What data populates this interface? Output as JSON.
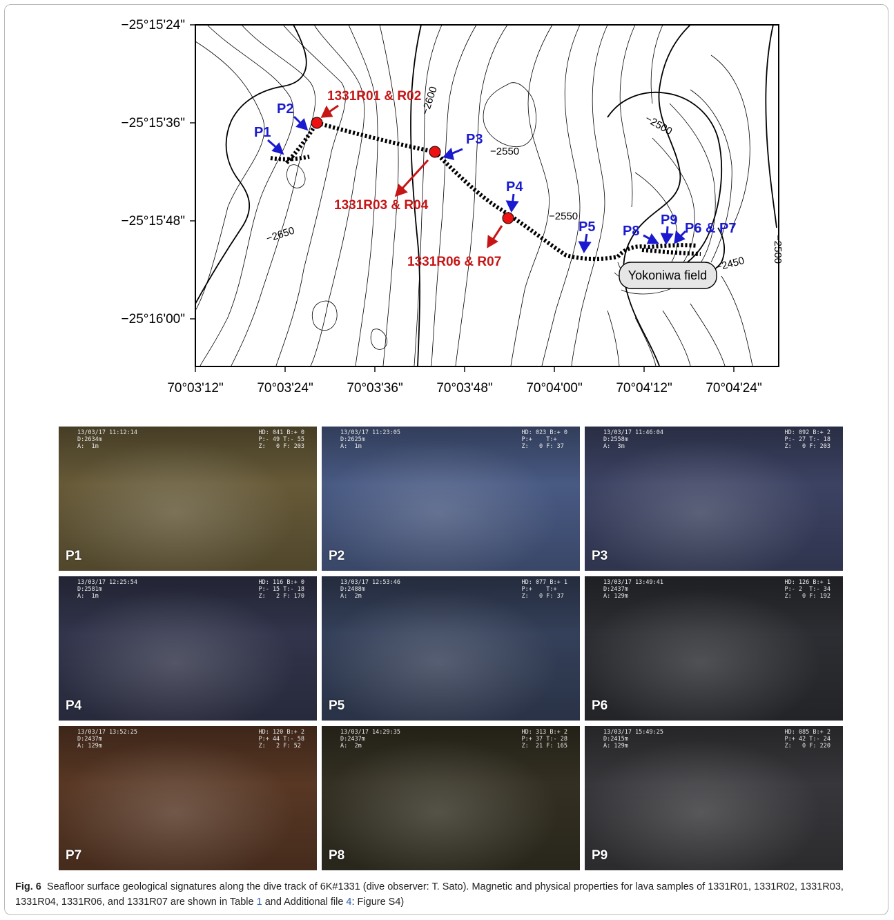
{
  "map": {
    "lat_ticks": [
      "−25°15'24\"",
      "−25°15'36\"",
      "−25°15'48\"",
      "−25°16'00\""
    ],
    "lon_ticks": [
      "70°03'12\"",
      "70°03'24\"",
      "70°03'36\"",
      "70°03'48\"",
      "70°04'00\"",
      "70°04'12\"",
      "70°04'24\""
    ],
    "contour_labels": [
      "−2650",
      "−2600",
      "−2550",
      "−2550",
      "−2500",
      "−2500",
      "−2450"
    ],
    "points": [
      "P1",
      "P2",
      "P3",
      "P4",
      "P5",
      "P8",
      "P9",
      "P6 & P7"
    ],
    "samples": [
      "1331R01 & R02",
      "1331R03 & R04",
      "1331R06 & R07"
    ],
    "field_label": "Yokoniwa field",
    "colors": {
      "point": "#1a1ad0",
      "sample": "#c61515",
      "sample_dot": "#ee1111",
      "track": "#000000",
      "contour": "#000000"
    }
  },
  "photos": [
    {
      "label": "P1",
      "stamp": "13/03/17 11:12:14\nD:2634m\nA:  1m",
      "hud": "HD: 041 B:+ 0\nP:- 49 T:- 55\nZ:   0 F: 203",
      "bg": "#6b5e3a"
    },
    {
      "label": "P2",
      "stamp": "13/03/17 11:23:05\nD:2625m\nA:  1m",
      "hud": "HD: 023 B:+ 0\nP:+    T:+\nZ:   0 F: 37",
      "bg": "#4c5e8a"
    },
    {
      "label": "P3",
      "stamp": "13/03/17 11:46:04\nD:2558m\nA:  3m",
      "hud": "HD: 092 B:+ 2\nP:- 27 T:- 18\nZ:   0 F: 203",
      "bg": "#3f4668"
    },
    {
      "label": "P4",
      "stamp": "13/03/17 12:25:54\nD:2581m\nA:  1m",
      "hud": "HD: 116 B:+ 0\nP:- 15 T:- 18\nZ:   2 F: 170",
      "bg": "#34374f"
    },
    {
      "label": "P5",
      "stamp": "13/03/17 12:53:46\nD:2488m\nA:  2m",
      "hud": "HD: 077 B:+ 1\nP:+    T:+\nZ:   0 F: 37",
      "bg": "#37435e"
    },
    {
      "label": "P6",
      "stamp": "13/03/17 13:49:41\nD:2437m\nA: 129m",
      "hud": "HD: 126 B:+ 1\nP:- 2  T:- 34\nZ:   0 F: 192",
      "bg": "#2f3035"
    },
    {
      "label": "P7",
      "stamp": "13/03/17 13:52:25\nD:2437m\nA: 129m",
      "hud": "HD: 120 B:+ 2\nP:+ 44 T:- 58\nZ:   2 F: 52",
      "bg": "#5d3a26"
    },
    {
      "label": "P8",
      "stamp": "13/03/17 14:29:35\nD:2437m\nA:  2m",
      "hud": "HD: 313 B:+ 2\nP:+ 37 T:- 28\nZ:  21 F: 165",
      "bg": "#363224"
    },
    {
      "label": "P9",
      "stamp": "13/03/17 15:49:25\nD:2415m\nA: 129m",
      "hud": "HD: 085 B:+ 2\nP:+ 42 T:- 24\nZ:   0 F: 220",
      "bg": "#3a3a3e"
    }
  ],
  "caption": {
    "fig": "Fig. 6",
    "text_a": "Seafloor surface geological signatures along the dive track of 6K#1331 (dive observer: T. Sato). Magnetic and physical properties for lava samples of 1331R01, 1331R02, 1331R03, 1331R04, 1331R06, and 1331R07 are shown in Table ",
    "table_ref": "1",
    "text_b": " and Additional file ",
    "file_ref": "4",
    "text_c": ": Figure S4)"
  }
}
